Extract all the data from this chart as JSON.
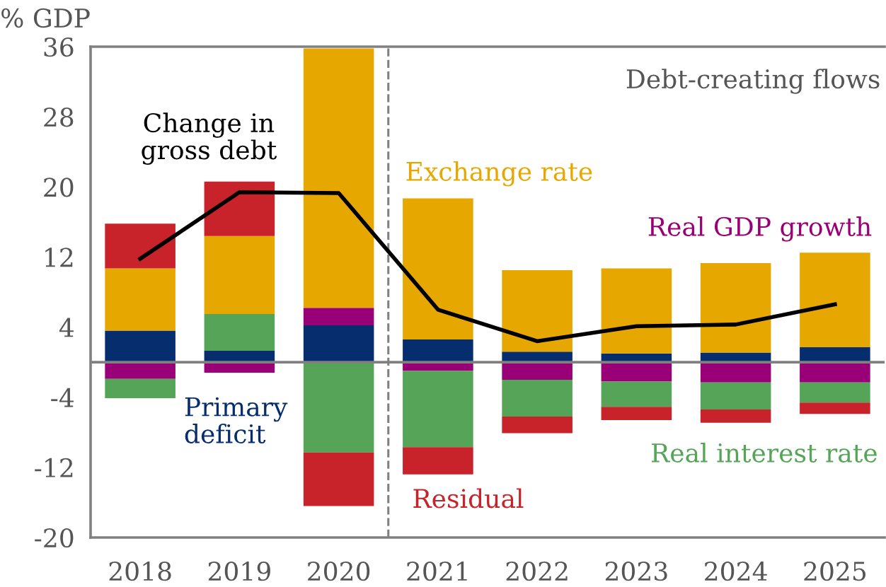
{
  "chart_data": {
    "type": "bar",
    "stacked": true,
    "ylabel": "% GDP",
    "categories": [
      "2018",
      "2019",
      "2020",
      "2021",
      "2022",
      "2023",
      "2024",
      "2025"
    ],
    "series": [
      {
        "name": "Primary\ndeficit",
        "color": "#062e6e",
        "values": [
          3.6,
          1.3,
          4.2,
          2.6,
          1.2,
          1.0,
          1.1,
          1.7
        ]
      },
      {
        "name": "Real GDP growth",
        "color": "#990078",
        "values": [
          -1.9,
          -1.2,
          2.0,
          -1.0,
          -2.0,
          -2.2,
          -2.3,
          -2.3
        ]
      },
      {
        "name": "Real interest rate",
        "color": "#55a457",
        "values": [
          -2.2,
          4.2,
          -10.3,
          -8.7,
          -4.2,
          -2.9,
          -3.1,
          -2.3
        ]
      },
      {
        "name": "Exchange rate",
        "color": "#e6a800",
        "values": [
          7.1,
          8.9,
          29.6,
          16.1,
          9.3,
          9.7,
          10.2,
          10.8
        ]
      },
      {
        "name": "Residual",
        "color": "#c8222a",
        "values": [
          5.1,
          6.2,
          -6.1,
          -3.1,
          -1.9,
          -1.5,
          -1.5,
          -1.3
        ]
      },
      {
        "name": "Change in\ngross debt",
        "type": "line",
        "color": "#000000",
        "values": [
          11.8,
          19.4,
          19.3,
          6.0,
          2.4,
          4.1,
          4.3,
          6.6
        ]
      }
    ],
    "ylim": [
      -20,
      36
    ],
    "yticks": [
      -20,
      -12,
      -4,
      4,
      12,
      20,
      28,
      36
    ],
    "ref_lines": [
      {
        "axis": "y",
        "value": 0,
        "color": "#808080",
        "line_style": "solid"
      }
    ],
    "annotations": [
      "Debt-creating flows"
    ],
    "grid": false,
    "legend": false
  }
}
